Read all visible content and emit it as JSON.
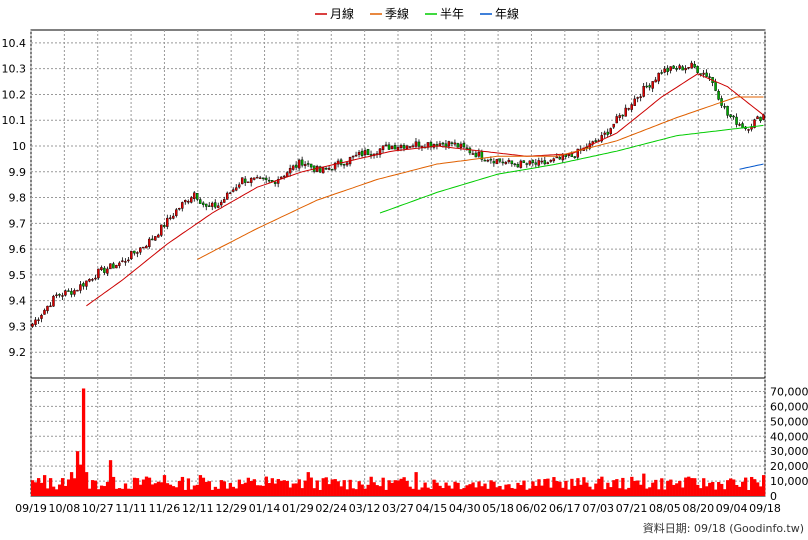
{
  "legend": [
    {
      "label": "月線",
      "color": "#cc0000"
    },
    {
      "label": "季線",
      "color": "#e06000"
    },
    {
      "label": "半年",
      "color": "#00cc00"
    },
    {
      "label": "年線",
      "color": "#0055cc"
    }
  ],
  "footer": {
    "source": "資料日期: 09/18  (Goodinfo.tw)"
  },
  "chart_data": [
    {
      "type": "candlestick",
      "title": "",
      "ylim": [
        9.1,
        10.45
      ],
      "yticks": [
        9.2,
        9.3,
        9.4,
        9.5,
        9.6,
        9.7,
        9.8,
        9.9,
        10,
        10.1,
        10.2,
        10.3,
        10.4
      ],
      "ytick_labels": [
        "9.2",
        "9.3",
        "9.4",
        "9.5",
        "9.6",
        "9.7",
        "9.8",
        "9.9",
        "10",
        "10.1",
        "10.2",
        "10.3",
        "10.4"
      ],
      "xtick_labels": [
        "09/19",
        "10/08",
        "10/27",
        "11/11",
        "11/26",
        "12/11",
        "12/29",
        "01/14",
        "01/29",
        "02/24",
        "03/12",
        "03/27",
        "04/15",
        "04/30",
        "05/18",
        "06/02",
        "06/17",
        "07/03",
        "07/21",
        "08/05",
        "08/20",
        "09/04",
        "09/18"
      ],
      "n_bars": 245,
      "grid": true,
      "close_keypoints": [
        [
          0,
          9.31
        ],
        [
          8,
          9.42
        ],
        [
          14,
          9.44
        ],
        [
          22,
          9.51
        ],
        [
          30,
          9.55
        ],
        [
          40,
          9.64
        ],
        [
          48,
          9.75
        ],
        [
          54,
          9.82
        ],
        [
          58,
          9.76
        ],
        [
          62,
          9.77
        ],
        [
          70,
          9.87
        ],
        [
          80,
          9.86
        ],
        [
          90,
          9.94
        ],
        [
          96,
          9.9
        ],
        [
          102,
          9.93
        ],
        [
          110,
          9.97
        ],
        [
          120,
          10.0
        ],
        [
          130,
          10.01
        ],
        [
          140,
          10.01
        ],
        [
          150,
          9.96
        ],
        [
          160,
          9.93
        ],
        [
          170,
          9.93
        ],
        [
          180,
          9.96
        ],
        [
          190,
          10.03
        ],
        [
          200,
          10.17
        ],
        [
          210,
          10.29
        ],
        [
          220,
          10.31
        ],
        [
          226,
          10.27
        ],
        [
          232,
          10.12
        ],
        [
          238,
          10.07
        ],
        [
          244,
          10.12
        ]
      ],
      "series": [
        {
          "name": "月線",
          "color": "#cc0000",
          "start": 18,
          "points": [
            [
              18,
              9.38
            ],
            [
              30,
              9.48
            ],
            [
              45,
              9.62
            ],
            [
              60,
              9.74
            ],
            [
              75,
              9.84
            ],
            [
              90,
              9.9
            ],
            [
              105,
              9.94
            ],
            [
              120,
              9.98
            ],
            [
              135,
              10.0
            ],
            [
              150,
              9.98
            ],
            [
              165,
              9.96
            ],
            [
              180,
              9.97
            ],
            [
              195,
              10.05
            ],
            [
              210,
              10.19
            ],
            [
              222,
              10.28
            ],
            [
              232,
              10.23
            ],
            [
              244,
              10.12
            ]
          ]
        },
        {
          "name": "季線",
          "color": "#e06000",
          "start": 55,
          "points": [
            [
              55,
              9.56
            ],
            [
              75,
              9.68
            ],
            [
              95,
              9.79
            ],
            [
              115,
              9.87
            ],
            [
              135,
              9.93
            ],
            [
              155,
              9.96
            ],
            [
              175,
              9.96
            ],
            [
              195,
              10.02
            ],
            [
              215,
              10.11
            ],
            [
              235,
              10.19
            ],
            [
              244,
              10.19
            ]
          ]
        },
        {
          "name": "半年",
          "color": "#00cc00",
          "start": 116,
          "points": [
            [
              116,
              9.74
            ],
            [
              135,
              9.82
            ],
            [
              155,
              9.89
            ],
            [
              175,
              9.93
            ],
            [
              195,
              9.98
            ],
            [
              215,
              10.04
            ],
            [
              244,
              10.08
            ]
          ]
        },
        {
          "name": "年線",
          "color": "#0055cc",
          "start": 236,
          "points": [
            [
              236,
              9.91
            ],
            [
              244,
              9.93
            ]
          ]
        }
      ]
    },
    {
      "type": "bar",
      "title": "",
      "ylim": [
        0,
        75000
      ],
      "yticks": [
        0,
        10000,
        20000,
        30000,
        40000,
        50000,
        60000,
        70000
      ],
      "ytick_labels": [
        "0",
        "10,000",
        "20,000",
        "30,000",
        "40,000",
        "50,000",
        "60,000",
        "70,000"
      ],
      "n_bars": 245,
      "base_volume": 10000,
      "volume_overrides": [
        [
          4,
          14000
        ],
        [
          10,
          12000
        ],
        [
          13,
          16000
        ],
        [
          15,
          30000
        ],
        [
          16,
          21000
        ],
        [
          17,
          72000
        ],
        [
          18,
          16000
        ],
        [
          26,
          24000
        ],
        [
          38,
          13000
        ],
        [
          44,
          14000
        ],
        [
          56,
          14000
        ],
        [
          78,
          13000
        ],
        [
          92,
          16000
        ],
        [
          128,
          16000
        ],
        [
          204,
          15000
        ],
        [
          220,
          12000
        ],
        [
          244,
          14000
        ]
      ],
      "bar_color": "#ff0000"
    }
  ]
}
